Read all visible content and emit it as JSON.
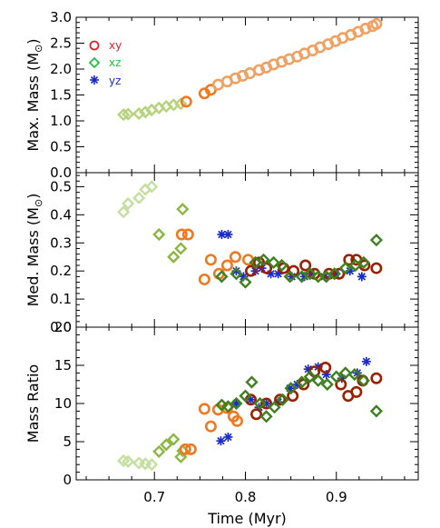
{
  "chart_data": [
    {
      "type": "scatter",
      "panel": "top",
      "ylabel": "Max. Mass (M",
      "ylabel_suffix": ")",
      "ylabel_symbol": "⊙",
      "ylim": [
        0.0,
        3.0
      ],
      "yticks": [
        0.0,
        0.5,
        1.0,
        1.5,
        2.0,
        2.5,
        3.0
      ],
      "ytick_labels": [
        "0.0",
        "0.5",
        "1.0",
        "1.5",
        "2.0",
        "2.5",
        "3.0"
      ],
      "legend": {
        "placement": "top-left",
        "entries": [
          {
            "label": "xy",
            "marker": "circle",
            "color": "#e8202a"
          },
          {
            "label": "xz",
            "marker": "diamond",
            "color": "#22c040"
          },
          {
            "label": "yz",
            "marker": "asterisk",
            "color": "#1a2bd0"
          }
        ]
      },
      "series": [
        {
          "marker": "diamond",
          "color": "#b5d37a",
          "x": [
            0.666,
            0.671,
            0.683,
            0.69,
            0.697,
            0.705,
            0.713,
            0.721,
            0.729
          ],
          "y": [
            1.12,
            1.13,
            1.14,
            1.17,
            1.21,
            1.25,
            1.28,
            1.31,
            1.33
          ]
        },
        {
          "marker": "circle",
          "color": "#f07820",
          "x": [
            0.735,
            0.755,
            0.762
          ],
          "y": [
            1.37,
            1.53,
            1.6
          ]
        },
        {
          "marker": "circle",
          "color": "#f0a060",
          "x": [
            0.77,
            0.78,
            0.789,
            0.797,
            0.805,
            0.815,
            0.823,
            0.831,
            0.84,
            0.848,
            0.857,
            0.865,
            0.874,
            0.882,
            0.891,
            0.899,
            0.907,
            0.916,
            0.924,
            0.932,
            0.94,
            0.944
          ],
          "y": [
            1.7,
            1.76,
            1.82,
            1.87,
            1.92,
            1.98,
            2.03,
            2.09,
            2.14,
            2.19,
            2.24,
            2.3,
            2.36,
            2.42,
            2.48,
            2.54,
            2.6,
            2.66,
            2.72,
            2.78,
            2.83,
            2.87
          ]
        }
      ]
    },
    {
      "type": "scatter",
      "panel": "middle",
      "ylabel": "Med. Mass (M",
      "ylabel_suffix": ")",
      "ylabel_symbol": "⊙",
      "ylim": [
        0.0,
        0.55
      ],
      "yticks": [
        0.0,
        0.1,
        0.2,
        0.3,
        0.4,
        0.5
      ],
      "ytick_labels": [
        "0.0",
        "0.1",
        "0.2",
        "0.3",
        "0.4",
        "0.5"
      ],
      "series": [
        {
          "marker": "diamond",
          "color": "#c5dfa0",
          "x": [
            0.666,
            0.671,
            0.683,
            0.69,
            0.697
          ],
          "y": [
            0.41,
            0.44,
            0.46,
            0.49,
            0.5
          ]
        },
        {
          "marker": "diamond",
          "color": "#8ab840",
          "x": [
            0.705,
            0.721,
            0.729,
            0.731
          ],
          "y": [
            0.33,
            0.25,
            0.28,
            0.42
          ]
        },
        {
          "marker": "circle",
          "color": "#f07820",
          "x": [
            0.73,
            0.737,
            0.755,
            0.762,
            0.771,
            0.78,
            0.789,
            0.803
          ],
          "y": [
            0.33,
            0.33,
            0.17,
            0.24,
            0.19,
            0.22,
            0.25,
            0.24
          ]
        },
        {
          "marker": "asterisk",
          "color": "#1a2bd0",
          "x": [
            0.774,
            0.781,
            0.79,
            0.798,
            0.811,
            0.818,
            0.828,
            0.836,
            0.851,
            0.865,
            0.872,
            0.887,
            0.899,
            0.915,
            0.928
          ],
          "y": [
            0.33,
            0.33,
            0.2,
            0.18,
            0.2,
            0.21,
            0.19,
            0.19,
            0.18,
            0.18,
            0.19,
            0.18,
            0.19,
            0.2,
            0.18
          ]
        },
        {
          "marker": "circle",
          "color": "#9b2000",
          "x": [
            0.806,
            0.815,
            0.823,
            0.842,
            0.853,
            0.866,
            0.876,
            0.892,
            0.903,
            0.914,
            0.922,
            0.931,
            0.944
          ],
          "y": [
            0.2,
            0.23,
            0.21,
            0.21,
            0.2,
            0.22,
            0.19,
            0.19,
            0.19,
            0.24,
            0.24,
            0.22,
            0.21
          ]
        },
        {
          "marker": "diamond",
          "color": "#3f8020",
          "x": [
            0.774,
            0.79,
            0.8,
            0.811,
            0.82,
            0.831,
            0.84,
            0.849,
            0.862,
            0.871,
            0.88,
            0.889,
            0.898,
            0.91,
            0.921,
            0.93,
            0.944
          ],
          "y": [
            0.18,
            0.19,
            0.16,
            0.23,
            0.24,
            0.23,
            0.22,
            0.18,
            0.18,
            0.19,
            0.18,
            0.18,
            0.19,
            0.21,
            0.22,
            0.23,
            0.31
          ]
        }
      ]
    },
    {
      "type": "scatter",
      "panel": "bottom",
      "ylabel": "Mass Ratio",
      "xlabel": "Time (Myr)",
      "ylim": [
        0,
        20
      ],
      "yticks": [
        0,
        5,
        10,
        15,
        20
      ],
      "ytick_labels": [
        "0",
        "5",
        "10",
        "15",
        "20"
      ],
      "xlim": [
        0.614,
        0.99
      ],
      "xticks": [
        0.7,
        0.8,
        0.9
      ],
      "xtick_labels": [
        "0.7",
        "0.8",
        "0.9"
      ],
      "series": [
        {
          "marker": "diamond",
          "color": "#c5dfa0",
          "x": [
            0.666,
            0.671,
            0.683,
            0.69,
            0.697
          ],
          "y": [
            2.5,
            2.4,
            2.2,
            2.1,
            2.0
          ]
        },
        {
          "marker": "diamond",
          "color": "#8ab840",
          "x": [
            0.705,
            0.713,
            0.721,
            0.729,
            0.731
          ],
          "y": [
            3.7,
            4.6,
            5.3,
            3.0,
            3.8
          ]
        },
        {
          "marker": "circle",
          "color": "#f07820",
          "x": [
            0.734,
            0.74,
            0.755,
            0.762,
            0.77,
            0.78,
            0.787,
            0.791
          ],
          "y": [
            4.0,
            4.0,
            9.3,
            7.0,
            9.2,
            9.4,
            8.3,
            7.7
          ]
        },
        {
          "marker": "asterisk",
          "color": "#1a2bd0",
          "x": [
            0.773,
            0.781,
            0.79,
            0.806,
            0.815,
            0.823,
            0.836,
            0.849,
            0.857,
            0.869,
            0.88,
            0.889,
            0.906,
            0.923,
            0.933
          ],
          "y": [
            5.1,
            5.6,
            10.0,
            10.5,
            9.5,
            10.0,
            10.2,
            12.0,
            12.5,
            14.5,
            14.8,
            13.8,
            13.3,
            14.0,
            15.5
          ]
        },
        {
          "marker": "circle",
          "color": "#9b2000",
          "x": [
            0.806,
            0.812,
            0.823,
            0.838,
            0.852,
            0.864,
            0.876,
            0.888,
            0.905,
            0.913,
            0.922,
            0.929,
            0.944
          ],
          "y": [
            10.5,
            8.6,
            10.0,
            10.5,
            11.0,
            12.5,
            14.2,
            14.7,
            12.5,
            11.0,
            11.5,
            13.0,
            13.3
          ]
        },
        {
          "marker": "diamond",
          "color": "#3f8020",
          "x": [
            0.774,
            0.781,
            0.79,
            0.8,
            0.807,
            0.816,
            0.823,
            0.832,
            0.841,
            0.85,
            0.862,
            0.871,
            0.88,
            0.89,
            0.9,
            0.91,
            0.92,
            0.93,
            0.944
          ],
          "y": [
            9.8,
            9.6,
            10.0,
            11.0,
            12.8,
            10.0,
            8.3,
            9.5,
            10.5,
            12.0,
            12.8,
            13.5,
            13.0,
            12.5,
            13.5,
            14.0,
            13.8,
            13.0,
            9.0
          ]
        }
      ]
    }
  ]
}
